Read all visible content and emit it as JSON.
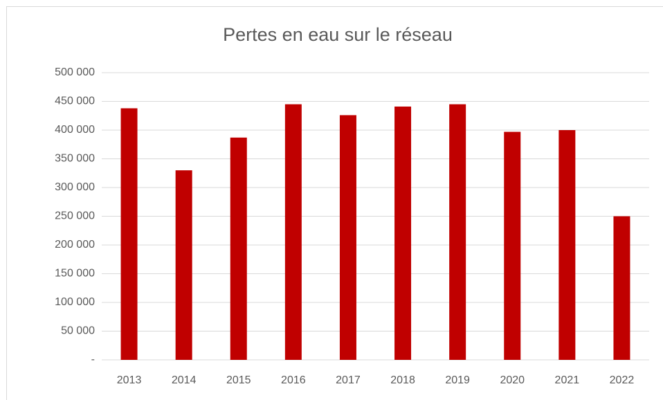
{
  "chart_data": {
    "type": "bar",
    "title": "Pertes en eau sur le réseau",
    "categories": [
      "2013",
      "2014",
      "2015",
      "2016",
      "2017",
      "2018",
      "2019",
      "2020",
      "2021",
      "2022"
    ],
    "values": [
      438000,
      330000,
      387000,
      445000,
      426000,
      441000,
      445000,
      397000,
      400000,
      250000
    ],
    "color": "#c00000",
    "ylim": [
      0,
      500000
    ],
    "yticks": [
      {
        "value": 0,
        "label": "-"
      },
      {
        "value": 50000,
        "label": "50 000"
      },
      {
        "value": 100000,
        "label": "100 000"
      },
      {
        "value": 150000,
        "label": "150 000"
      },
      {
        "value": 200000,
        "label": "200 000"
      },
      {
        "value": 250000,
        "label": "250 000"
      },
      {
        "value": 300000,
        "label": "300 000"
      },
      {
        "value": 350000,
        "label": "350 000"
      },
      {
        "value": 400000,
        "label": "400 000"
      },
      {
        "value": 450000,
        "label": "450 000"
      },
      {
        "value": 500000,
        "label": "500 000"
      }
    ],
    "grid": true
  }
}
